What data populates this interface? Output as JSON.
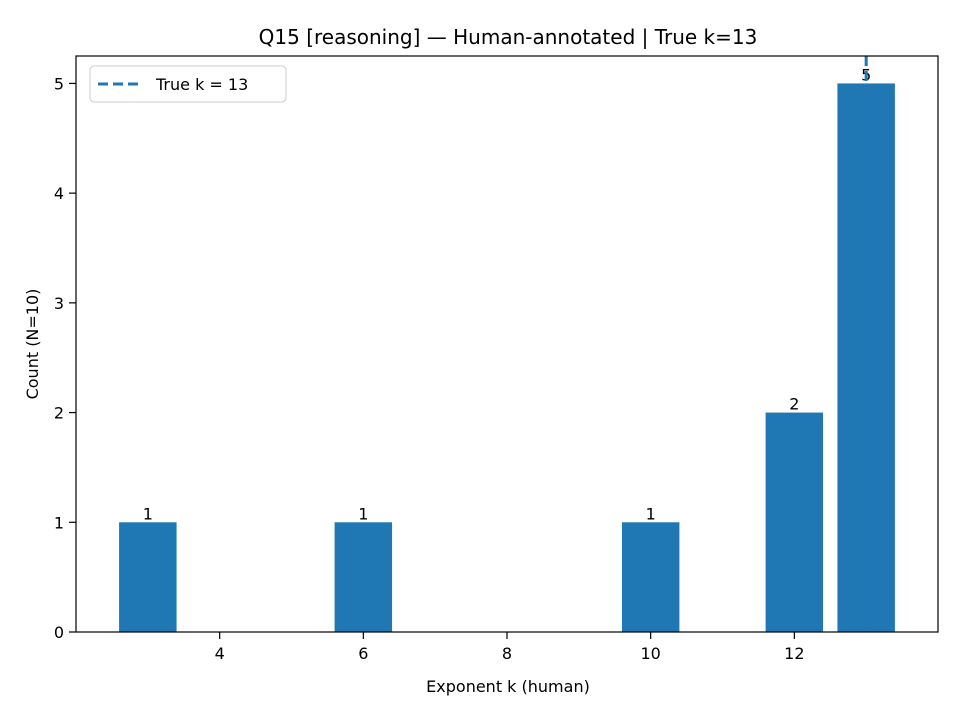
{
  "chart_data": {
    "type": "bar",
    "title": "Q15 [reasoning] — Human-annotated | True k=13",
    "xlabel": "Exponent k (human)",
    "ylabel": "Count (N=10)",
    "x": [
      3,
      6,
      10,
      12,
      13
    ],
    "values": [
      1,
      1,
      1,
      2,
      5
    ],
    "value_labels": [
      "1",
      "1",
      "1",
      "2",
      "5"
    ],
    "xlim": [
      2.0,
      14.0
    ],
    "ylim": [
      0,
      5.25
    ],
    "xticks": [
      4,
      6,
      8,
      10,
      12
    ],
    "xtick_labels": [
      "4",
      "6",
      "8",
      "10",
      "12"
    ],
    "yticks": [
      0,
      1,
      2,
      3,
      4,
      5
    ],
    "ytick_labels": [
      "0",
      "1",
      "2",
      "3",
      "4",
      "5"
    ],
    "bar_width": 0.8,
    "bar_color": "#1f77b4",
    "reference_line": {
      "x": 13,
      "label": "True k = 13",
      "style": "dashed",
      "color": "#1f77b4"
    },
    "legend": {
      "position": "top-left",
      "entries": [
        "True k = 13"
      ]
    },
    "grid": false
  }
}
